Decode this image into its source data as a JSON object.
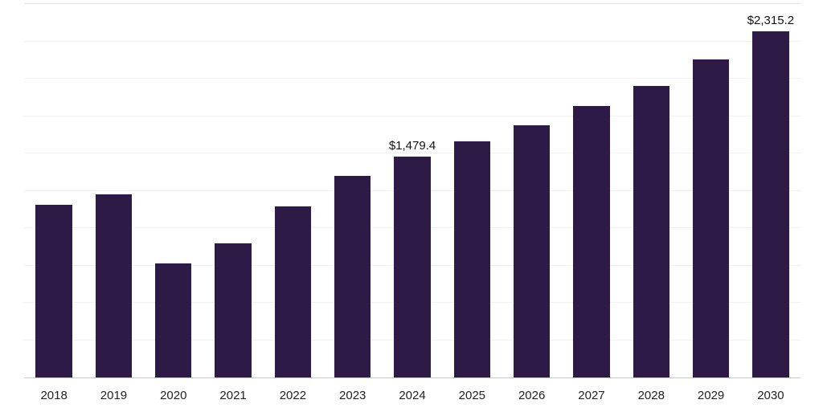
{
  "chart_data": {
    "type": "bar",
    "title": "",
    "xlabel": "",
    "ylabel": "",
    "categories": [
      "2018",
      "2019",
      "2020",
      "2021",
      "2022",
      "2023",
      "2024",
      "2025",
      "2026",
      "2027",
      "2028",
      "2029",
      "2030"
    ],
    "values": [
      1155,
      1224,
      761,
      899,
      1144,
      1352,
      1479.4,
      1581,
      1687,
      1815,
      1953,
      2129,
      2315.2
    ],
    "point_labels": [
      "",
      "",
      "",
      "",
      "",
      "",
      "$1,479.4",
      "",
      "",
      "",
      "",
      "",
      "$2,315.2"
    ],
    "ylim": [
      0,
      2500
    ],
    "gridline_step": 250,
    "grid": true,
    "legend_position": "none",
    "bar_color": "#2e1a47",
    "axis_color": "#c9c9c9",
    "gridline_color": "#f2f2f2",
    "top_gridline_color": "#e3e3e3",
    "label_color": "#111111"
  }
}
